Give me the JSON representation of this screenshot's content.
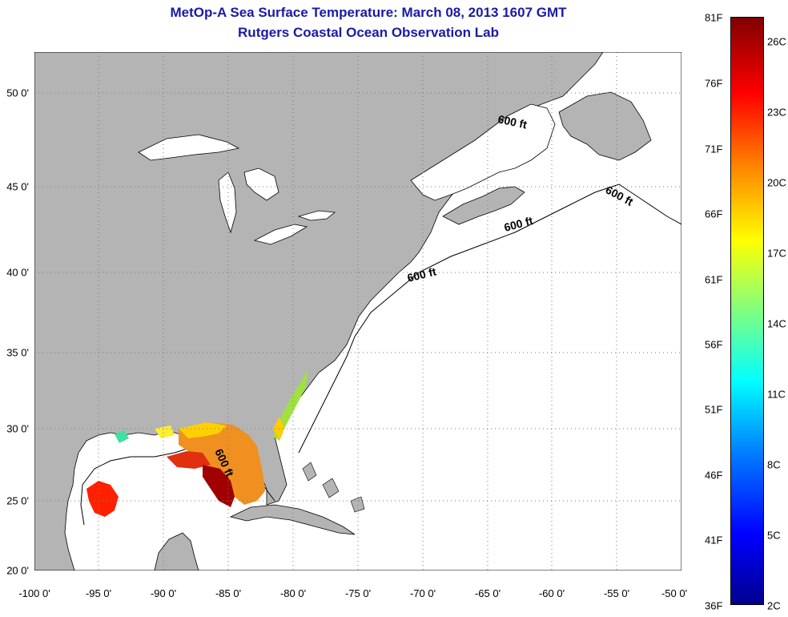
{
  "title_line1": "MetOp-A Sea Surface Temperature:  March 08, 2013 1607 GMT",
  "title_line2": "Rutgers Coastal Ocean Observation Lab",
  "lat_ticks": [
    "50 0'",
    "45 0'",
    "40 0'",
    "35 0'",
    "30 0'",
    "25 0'",
    "20 0'"
  ],
  "lon_ticks": [
    "-100 0'",
    "-95 0'",
    "-90 0'",
    "-85 0'",
    "-80 0'",
    "-75 0'",
    "-70 0'",
    "-65 0'",
    "-60 0'",
    "-55 0'",
    "-50 0'"
  ],
  "isobath_label": "600 ft",
  "colorbar": {
    "f_labels": [
      "81F",
      "76F",
      "71F",
      "66F",
      "61F",
      "56F",
      "51F",
      "46F",
      "41F",
      "36F"
    ],
    "c_labels": [
      "26C",
      "23C",
      "20C",
      "17C",
      "14C",
      "11C",
      "8C",
      "5C",
      "2C"
    ],
    "colors": [
      "#00008f",
      "#0000ff",
      "#0080ff",
      "#00ffff",
      "#80ff80",
      "#ffff00",
      "#ff8000",
      "#ff0000",
      "#800000"
    ]
  },
  "colors": {
    "land": "#b4b4b4",
    "ocean": "#ffffff",
    "title": "#1a1aa6",
    "grid": "#888888"
  }
}
